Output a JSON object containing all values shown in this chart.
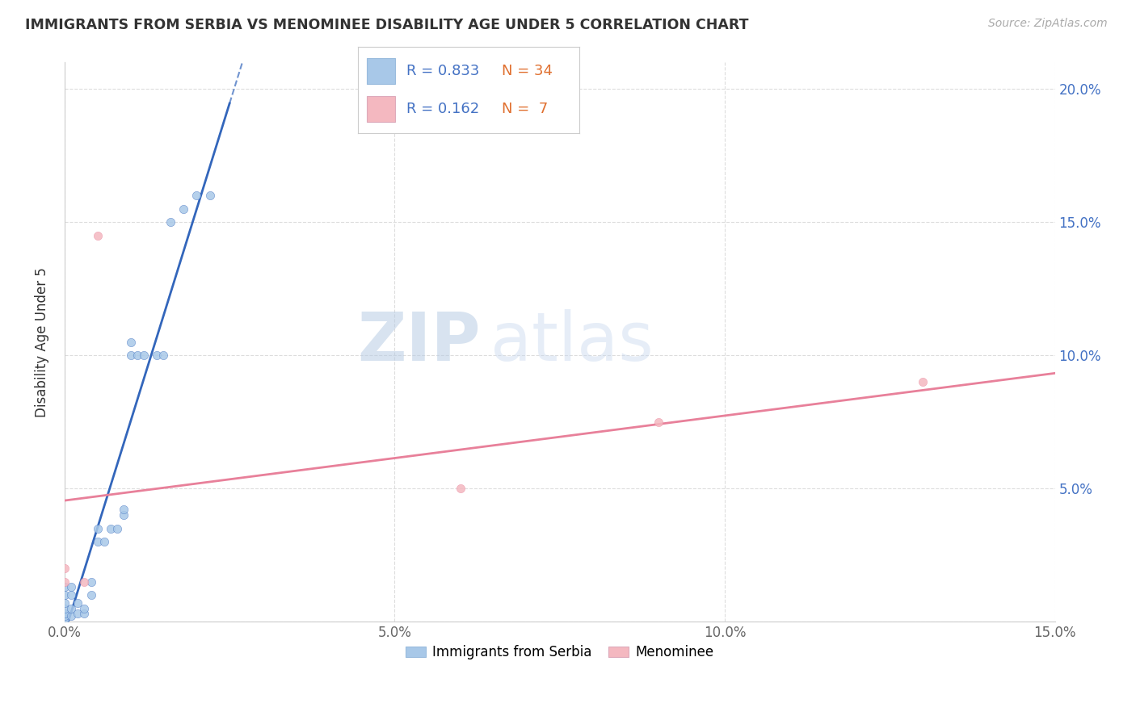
{
  "title": "IMMIGRANTS FROM SERBIA VS MENOMINEE DISABILITY AGE UNDER 5 CORRELATION CHART",
  "source": "Source: ZipAtlas.com",
  "ylabel": "Disability Age Under 5",
  "xlim": [
    0,
    0.15
  ],
  "ylim": [
    0,
    0.21
  ],
  "x_ticks": [
    0.0,
    0.05,
    0.1,
    0.15
  ],
  "x_tick_labels": [
    "0.0%",
    "5.0%",
    "10.0%",
    "15.0%"
  ],
  "y_ticks": [
    0.0,
    0.05,
    0.1,
    0.15,
    0.2
  ],
  "y_tick_labels": [
    "",
    "5.0%",
    "10.0%",
    "15.0%",
    "20.0%"
  ],
  "serbia_x": [
    0.0,
    0.0,
    0.0,
    0.0,
    0.0,
    0.0,
    0.0,
    0.001,
    0.001,
    0.001,
    0.001,
    0.002,
    0.002,
    0.003,
    0.003,
    0.004,
    0.004,
    0.005,
    0.005,
    0.006,
    0.007,
    0.008,
    0.009,
    0.009,
    0.01,
    0.01,
    0.011,
    0.012,
    0.014,
    0.015,
    0.016,
    0.018,
    0.02,
    0.022
  ],
  "serbia_y": [
    0.001,
    0.002,
    0.003,
    0.005,
    0.007,
    0.01,
    0.013,
    0.002,
    0.005,
    0.01,
    0.013,
    0.003,
    0.007,
    0.003,
    0.005,
    0.01,
    0.015,
    0.03,
    0.035,
    0.03,
    0.035,
    0.035,
    0.04,
    0.042,
    0.1,
    0.105,
    0.1,
    0.1,
    0.1,
    0.1,
    0.15,
    0.155,
    0.16,
    0.16
  ],
  "menominee_x": [
    0.0,
    0.0,
    0.003,
    0.005,
    0.06,
    0.09,
    0.13
  ],
  "menominee_y": [
    0.015,
    0.02,
    0.015,
    0.145,
    0.05,
    0.075,
    0.09
  ],
  "serbia_color": "#a8c8e8",
  "menominee_color": "#f4b8c0",
  "serbia_line_color": "#3366bb",
  "menominee_line_color": "#e8809a",
  "legend_r_serbia": "0.833",
  "legend_n_serbia": "34",
  "legend_r_menominee": "0.162",
  "legend_n_menominee": "7",
  "watermark_zip": "ZIP",
  "watermark_atlas": "atlas",
  "background_color": "#ffffff",
  "grid_color": "#dddddd",
  "r_color": "#4472c4",
  "n_color": "#e07030"
}
